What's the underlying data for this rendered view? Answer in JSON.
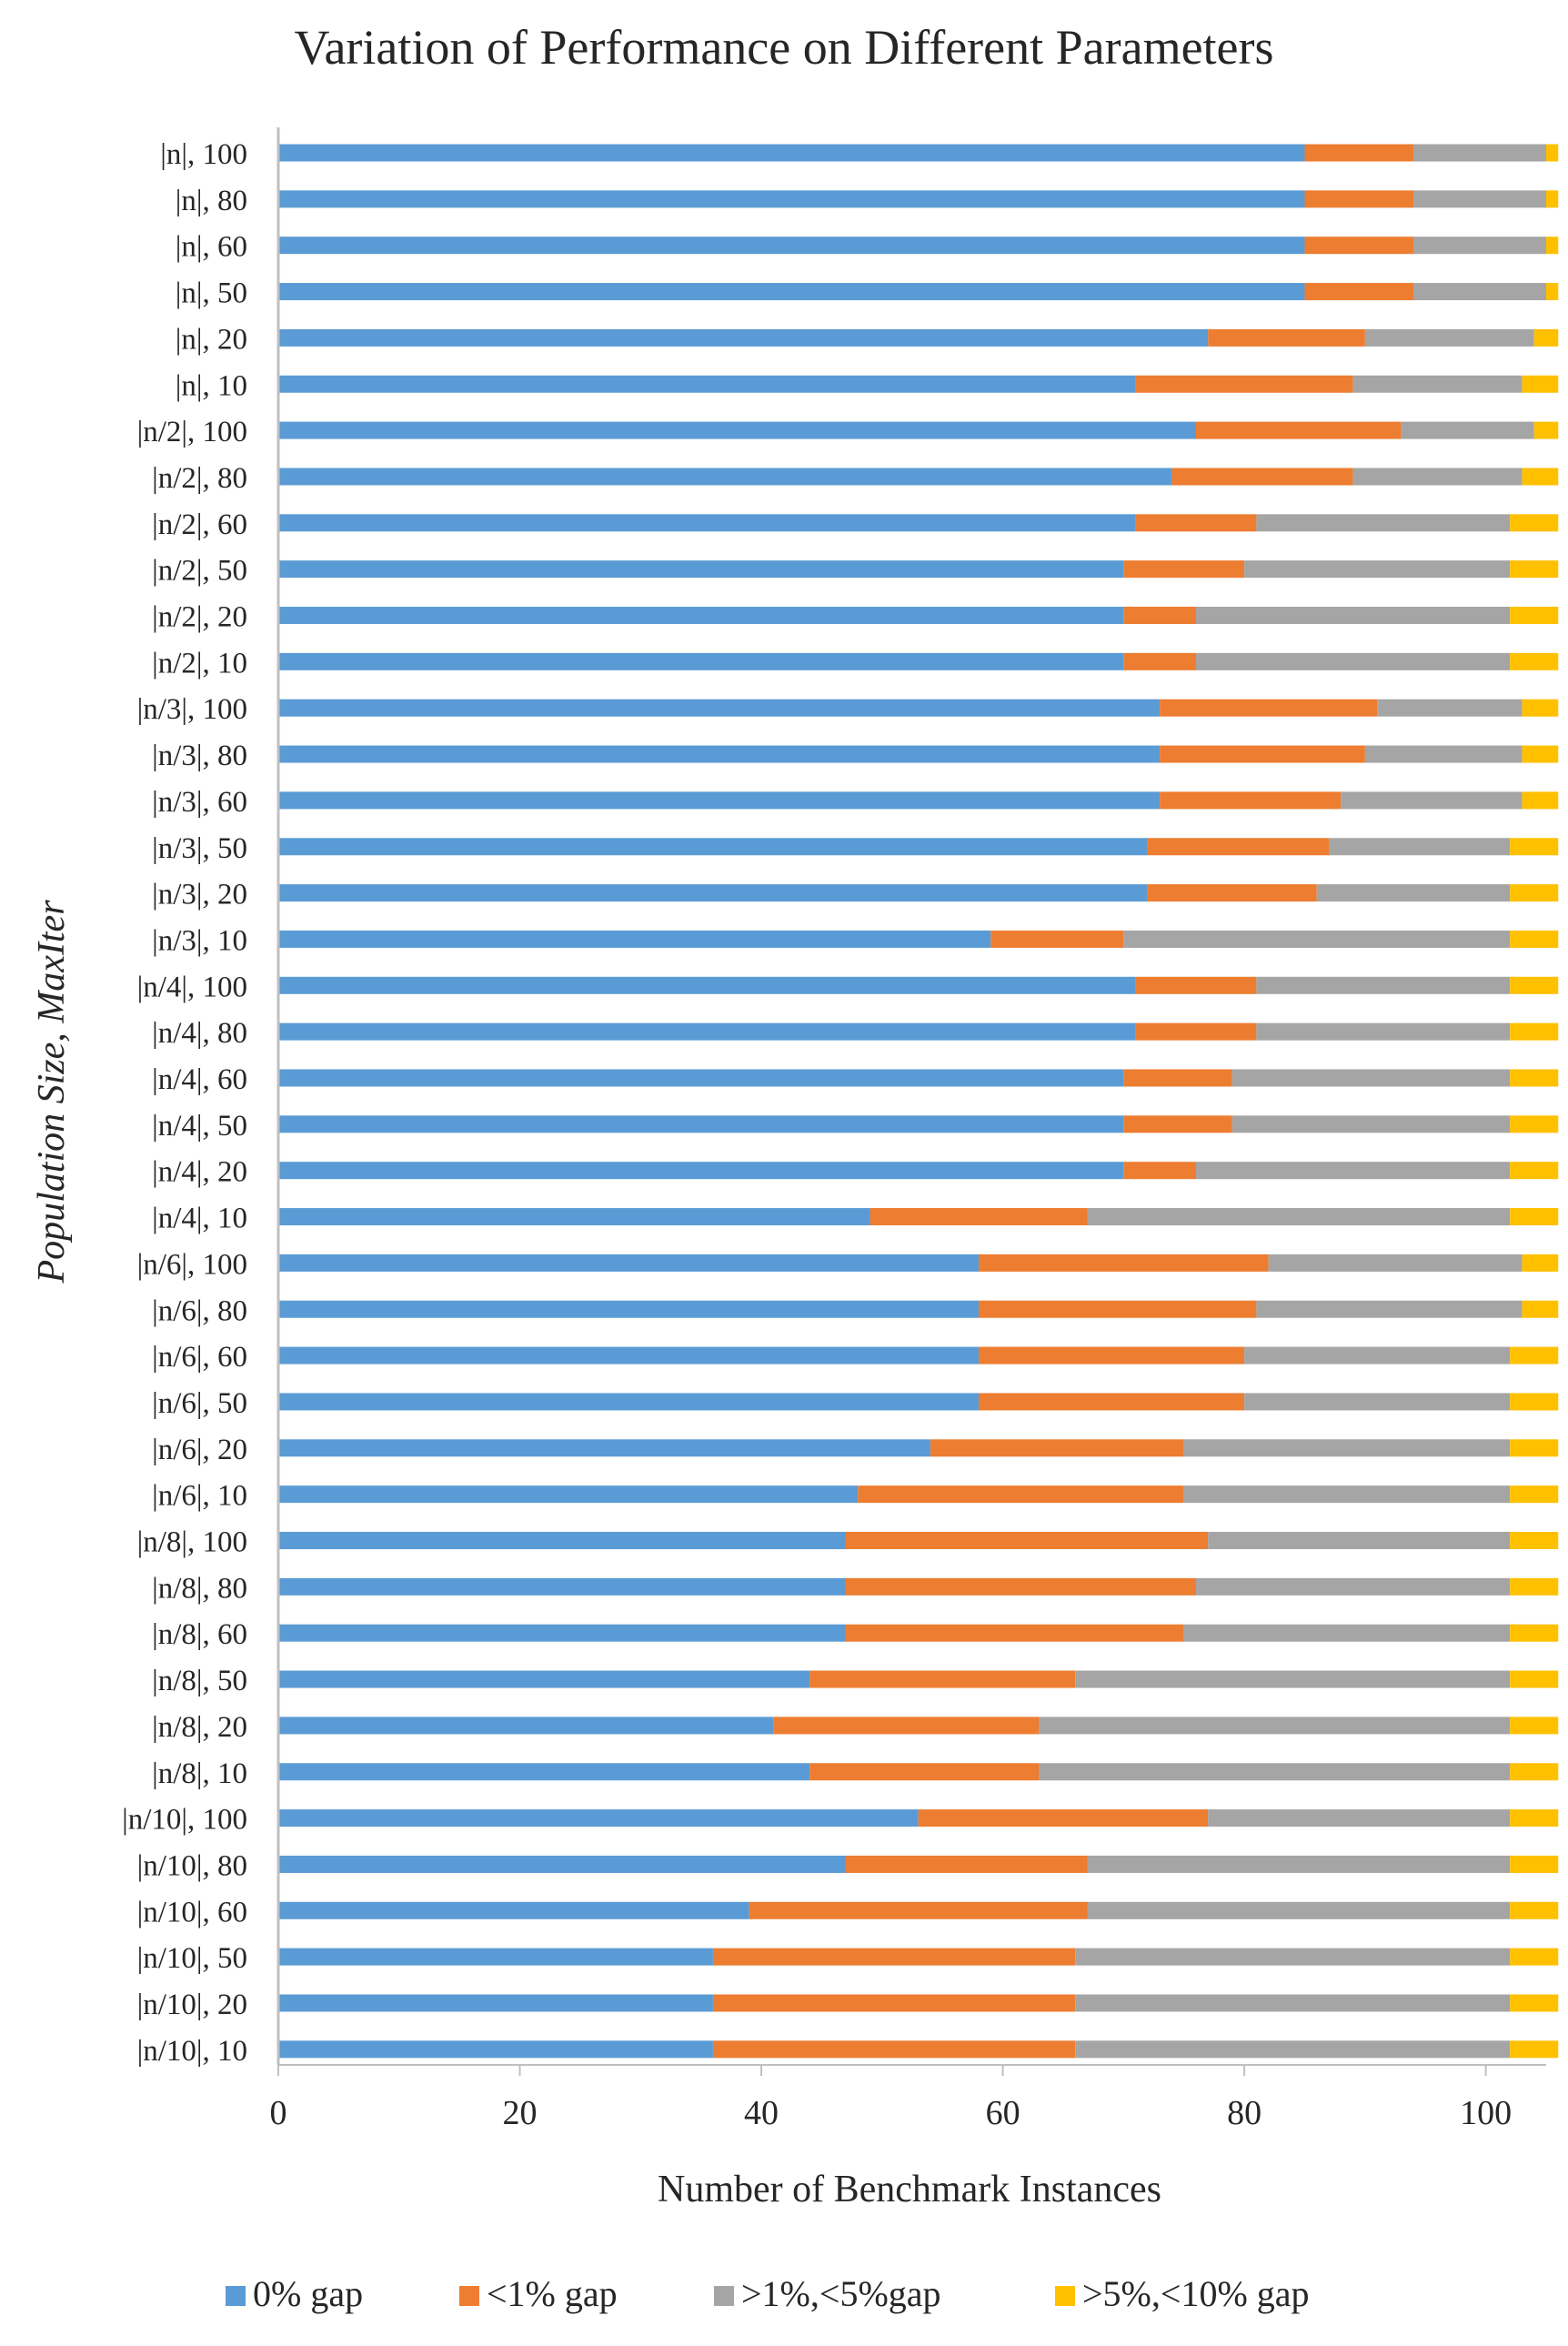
{
  "chart_data": {
    "type": "bar",
    "orientation": "horizontal",
    "stacked": true,
    "title": "Variation of Performance on Different Parameters",
    "xlabel": "Number of Benchmark Instances",
    "ylabel": "Population Size, MaxIter",
    "xlim": [
      0,
      105
    ],
    "xticks": [
      0,
      20,
      40,
      60,
      80,
      100
    ],
    "grid": false,
    "legend_position": "bottom",
    "categories": [
      "|n|, 100",
      "|n|, 80",
      "|n|, 60",
      "|n|, 50",
      "|n|, 20",
      "|n|, 10",
      "|n/2|, 100",
      "|n/2|, 80",
      "|n/2|, 60",
      "|n/2|, 50",
      "|n/2|, 20",
      "|n/2|, 10",
      "|n/3|, 100",
      "|n/3|, 80",
      "|n/3|, 60",
      "|n/3|, 50",
      "|n/3|, 20",
      "|n/3|, 10",
      "|n/4|, 100",
      "|n/4|, 80",
      "|n/4|, 60",
      "|n/4|, 50",
      "|n/4|, 20",
      "|n/4|, 10",
      "|n/6|, 100",
      "|n/6|, 80",
      "|n/6|, 60",
      "|n/6|, 50",
      "|n/6|, 20",
      "|n/6|, 10",
      "|n/8|, 100",
      "|n/8|, 80",
      "|n/8|, 60",
      "|n/8|, 50",
      "|n/8|, 20",
      "|n/8|, 10",
      "|n/10|, 100",
      "|n/10|, 80",
      "|n/10|, 60",
      "|n/10|, 50",
      "|n/10|, 20",
      "|n/10|, 10"
    ],
    "series": [
      {
        "name": "0% gap",
        "color": "#5B9BD5",
        "values": [
          85,
          85,
          85,
          85,
          77,
          71,
          76,
          74,
          71,
          70,
          70,
          70,
          73,
          73,
          73,
          72,
          72,
          59,
          71,
          71,
          70,
          70,
          70,
          49,
          58,
          58,
          58,
          58,
          54,
          48,
          47,
          47,
          47,
          44,
          41,
          44,
          53,
          47,
          39,
          36,
          36,
          36
        ]
      },
      {
        "name": "<1% gap",
        "color": "#ED7D31",
        "values": [
          9,
          9,
          9,
          9,
          13,
          18,
          17,
          15,
          10,
          10,
          6,
          6,
          18,
          17,
          15,
          15,
          14,
          11,
          10,
          10,
          9,
          9,
          6,
          18,
          24,
          23,
          22,
          22,
          21,
          27,
          30,
          29,
          28,
          22,
          22,
          19,
          24,
          20,
          28,
          30,
          30,
          30
        ]
      },
      {
        "name": ">1%,<5%gap",
        "color": "#A5A5A5",
        "values": [
          11,
          11,
          11,
          11,
          14,
          14,
          11,
          14,
          21,
          22,
          26,
          26,
          12,
          13,
          15,
          15,
          16,
          32,
          21,
          21,
          23,
          23,
          26,
          35,
          21,
          22,
          22,
          22,
          27,
          27,
          25,
          26,
          27,
          36,
          39,
          39,
          25,
          35,
          35,
          36,
          36,
          36
        ]
      },
      {
        "name": ">5%,<10% gap",
        "color": "#FFC000",
        "values": [
          1,
          1,
          1,
          1,
          2,
          3,
          2,
          3,
          4,
          4,
          4,
          4,
          3,
          3,
          3,
          4,
          4,
          4,
          4,
          4,
          4,
          4,
          4,
          4,
          3,
          3,
          4,
          4,
          4,
          4,
          4,
          4,
          4,
          4,
          4,
          4,
          4,
          4,
          4,
          4,
          4,
          4
        ]
      }
    ]
  }
}
